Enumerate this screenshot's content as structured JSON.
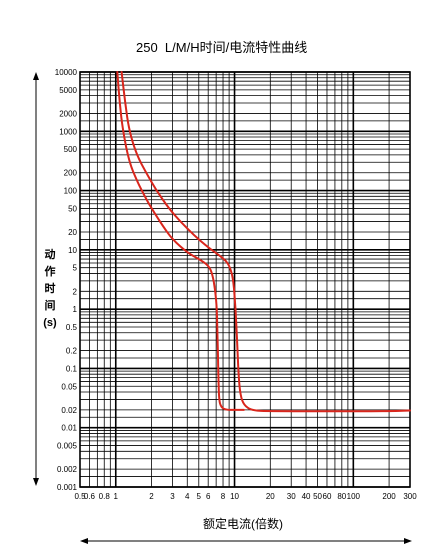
{
  "chart_data": {
    "type": "line",
    "title": "250  L/M/H时间/电流特性曲线",
    "xlabel": "额定电流(倍数)",
    "ylabel_chars": [
      "动",
      "作",
      "时",
      "间",
      "(s)"
    ],
    "x_scale": "log",
    "y_scale": "log",
    "xlim": [
      0.5,
      300
    ],
    "ylim": [
      0.001,
      10000
    ],
    "x_ticks": [
      {
        "value": 0.5,
        "label": "0.5"
      },
      {
        "value": 0.6,
        "label": "0.6"
      },
      {
        "value": 0.8,
        "label": "0.8"
      },
      {
        "value": 1,
        "label": "1"
      },
      {
        "value": 2,
        "label": "2"
      },
      {
        "value": 3,
        "label": "3"
      },
      {
        "value": 4,
        "label": "4"
      },
      {
        "value": 5,
        "label": "5"
      },
      {
        "value": 6,
        "label": "6"
      },
      {
        "value": 8,
        "label": "8"
      },
      {
        "value": 10,
        "label": "10"
      },
      {
        "value": 20,
        "label": "20"
      },
      {
        "value": 30,
        "label": "30"
      },
      {
        "value": 40,
        "label": "40"
      },
      {
        "value": 50,
        "label": "50"
      },
      {
        "value": 60,
        "label": "60"
      },
      {
        "value": 80,
        "label": "80"
      },
      {
        "value": 100,
        "label": "100"
      },
      {
        "value": 200,
        "label": "200"
      },
      {
        "value": 300,
        "label": "300"
      }
    ],
    "y_ticks": [
      {
        "value": 10000,
        "label": "10000"
      },
      {
        "value": 5000,
        "label": "5000"
      },
      {
        "value": 2000,
        "label": "2000"
      },
      {
        "value": 1000,
        "label": "1000"
      },
      {
        "value": 500,
        "label": "500"
      },
      {
        "value": 200,
        "label": "200"
      },
      {
        "value": 100,
        "label": "100"
      },
      {
        "value": 50,
        "label": "50"
      },
      {
        "value": 20,
        "label": "20"
      },
      {
        "value": 10,
        "label": "10"
      },
      {
        "value": 5,
        "label": "5"
      },
      {
        "value": 2,
        "label": "2"
      },
      {
        "value": 1,
        "label": "1"
      },
      {
        "value": 0.5,
        "label": "0.5"
      },
      {
        "value": 0.2,
        "label": "0.2"
      },
      {
        "value": 0.1,
        "label": "0.1"
      },
      {
        "value": 0.05,
        "label": "0.05"
      },
      {
        "value": 0.02,
        "label": "0.02"
      },
      {
        "value": 0.01,
        "label": "0.01"
      },
      {
        "value": 0.005,
        "label": "0.005"
      },
      {
        "value": 0.002,
        "label": "0.002"
      },
      {
        "value": 0.001,
        "label": "0.001"
      }
    ],
    "grid": true,
    "series_color": "#d9261c",
    "series": [
      {
        "points": [
          [
            1.03,
            10000
          ],
          [
            1.08,
            3000
          ],
          [
            1.15,
            1000
          ],
          [
            1.3,
            300
          ],
          [
            1.5,
            150
          ],
          [
            1.7,
            90
          ],
          [
            2.0,
            50
          ],
          [
            2.5,
            25
          ],
          [
            3.0,
            15
          ],
          [
            4.0,
            9
          ],
          [
            5.0,
            7
          ],
          [
            6.0,
            5.5
          ],
          [
            6.5,
            4
          ],
          [
            6.9,
            2
          ],
          [
            7.1,
            1
          ],
          [
            7.2,
            0.3
          ],
          [
            7.3,
            0.08
          ],
          [
            7.4,
            0.03
          ],
          [
            7.7,
            0.022
          ],
          [
            8.5,
            0.02
          ],
          [
            10,
            0.02
          ],
          [
            12,
            0.02
          ]
        ]
      },
      {
        "points": [
          [
            1.12,
            10000
          ],
          [
            1.2,
            3000
          ],
          [
            1.3,
            1000
          ],
          [
            1.5,
            400
          ],
          [
            1.8,
            200
          ],
          [
            2.2,
            100
          ],
          [
            2.8,
            50
          ],
          [
            3.5,
            30
          ],
          [
            4.5,
            18
          ],
          [
            6.0,
            11
          ],
          [
            7.5,
            8
          ],
          [
            8.5,
            6.5
          ],
          [
            9.2,
            5
          ],
          [
            9.8,
            3
          ],
          [
            10.2,
            1
          ],
          [
            10.5,
            0.3
          ],
          [
            10.8,
            0.08
          ],
          [
            11.2,
            0.035
          ],
          [
            12,
            0.024
          ],
          [
            14,
            0.0195
          ],
          [
            20,
            0.019
          ],
          [
            50,
            0.019
          ],
          [
            100,
            0.019
          ],
          [
            200,
            0.019
          ],
          [
            300,
            0.0195
          ]
        ]
      }
    ]
  }
}
